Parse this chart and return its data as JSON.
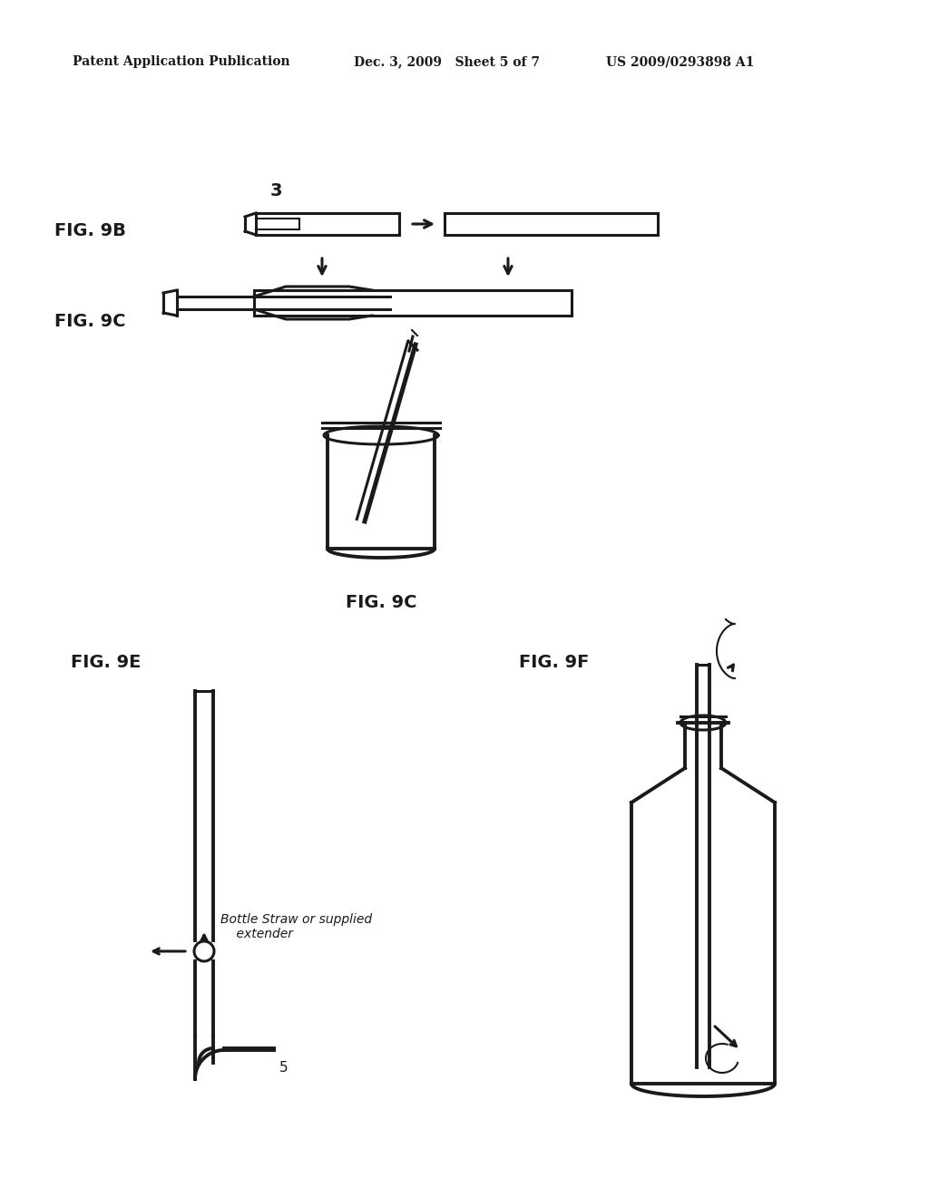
{
  "bg_color": "#ffffff",
  "text_color": "#1a1a1a",
  "header_left": "Patent Application Publication",
  "header_mid": "Dec. 3, 2009   Sheet 5 of 7",
  "header_right": "US 2009/0293898 A1",
  "fig_labels": {
    "fig9b": "FIG. 9B",
    "fig9c_top": "FIG. 9C",
    "fig9c_bottom": "FIG. 9C",
    "fig9e": "FIG. 9E",
    "fig9f": "FIG. 9F"
  },
  "annotation_text": "Bottle Straw or supplied\n    extender",
  "label_3": "3",
  "label_5": "5"
}
